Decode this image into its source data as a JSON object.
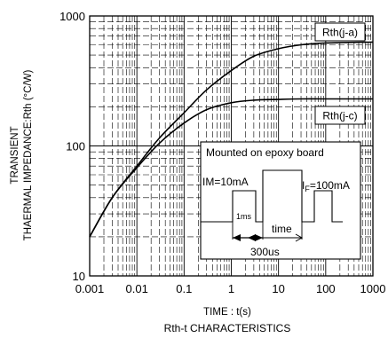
{
  "chart_data": {
    "type": "line",
    "title": "",
    "caption": "Rth-t CHARACTERISTICS",
    "xlabel": "TIME : t(s)",
    "ylabel_lines": [
      "TRANSIENT",
      "THAERMAL IMPEDANCE:Rth (°C/W)"
    ],
    "x_scale": "log",
    "y_scale": "log",
    "xlim": [
      0.001,
      1000
    ],
    "ylim": [
      10,
      1000
    ],
    "x_ticks": [
      0.001,
      0.01,
      0.1,
      1,
      10,
      100,
      1000
    ],
    "x_tick_labels": [
      "0.001",
      "0.01",
      "0.1",
      "1",
      "10",
      "100",
      "1000"
    ],
    "y_ticks": [
      10,
      100,
      1000
    ],
    "y_tick_labels": [
      "10",
      "100",
      "1000"
    ],
    "grid": true,
    "series": [
      {
        "name": "Rth(j-a)",
        "x": [
          0.001,
          0.003,
          0.01,
          0.03,
          0.1,
          0.3,
          1,
          3,
          10,
          30,
          100,
          1000
        ],
        "y": [
          20,
          40,
          70,
          115,
          180,
          270,
          380,
          490,
          560,
          600,
          620,
          630
        ]
      },
      {
        "name": "Rth(j-c)",
        "x": [
          0.001,
          0.003,
          0.01,
          0.03,
          0.1,
          0.3,
          1,
          3,
          10,
          30,
          100,
          1000
        ],
        "y": [
          20,
          40,
          68,
          105,
          150,
          190,
          215,
          225,
          228,
          230,
          230,
          230
        ]
      }
    ],
    "inset": {
      "title": "Mounted on epoxy board",
      "im_label": "IM=10mA",
      "if_label_prefix": "I",
      "if_label_sub": "F",
      "if_label_suffix": "=100mA",
      "pulse_label": "1ms",
      "time_label": "time",
      "period_label": "300us"
    }
  }
}
